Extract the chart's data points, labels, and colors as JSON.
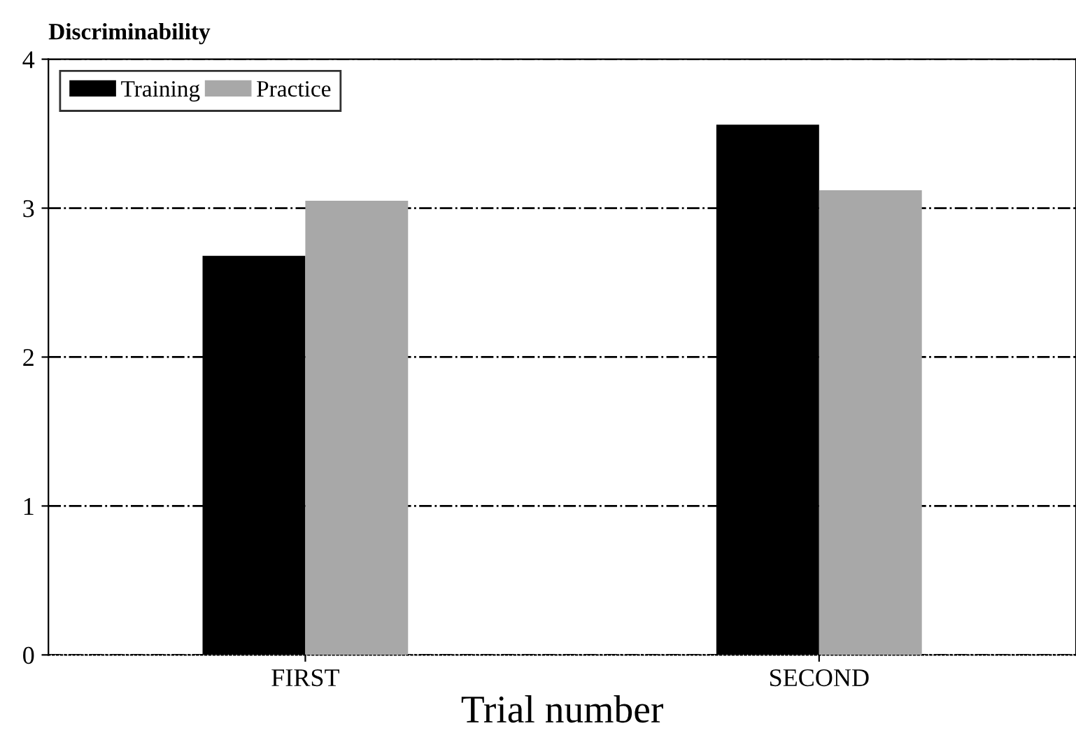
{
  "chart_data": {
    "type": "bar",
    "ylabel": "Discriminability",
    "xlabel": "Trial number",
    "categories": [
      "FIRST",
      "SECOND"
    ],
    "series": [
      {
        "name": "Training",
        "color": "#000000",
        "values": [
          2.68,
          3.56
        ]
      },
      {
        "name": "Practice",
        "color": "#a8a8a8",
        "values": [
          3.05,
          3.12
        ]
      }
    ],
    "ylim": [
      0,
      4
    ],
    "yticks": [
      0,
      1,
      2,
      3,
      4
    ],
    "grid": "y",
    "legend": "top left"
  }
}
